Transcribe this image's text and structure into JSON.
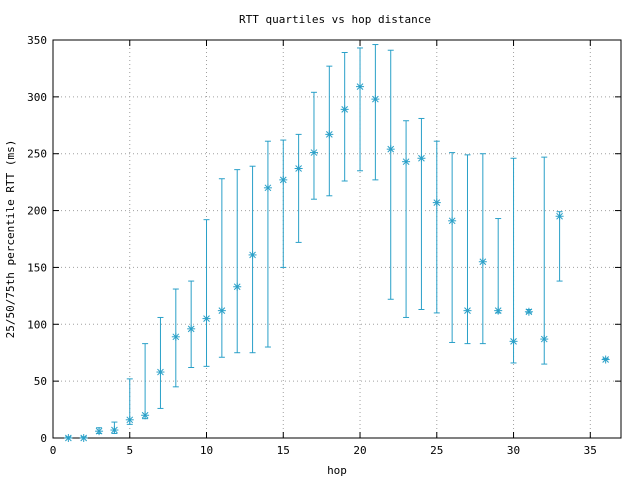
{
  "chart_data": {
    "type": "scatter",
    "title": "RTT quartiles vs hop distance",
    "xlabel": "hop",
    "ylabel": "25/50/75th percentile RTT (ms)",
    "xlim": [
      0,
      37
    ],
    "ylim": [
      0,
      350
    ],
    "xticks": [
      0,
      5,
      10,
      15,
      20,
      25,
      30,
      35
    ],
    "yticks": [
      0,
      50,
      100,
      150,
      200,
      250,
      300,
      350
    ],
    "grid": true,
    "color": "#2aa0c8",
    "points": [
      {
        "x": 1,
        "p25": 0,
        "median": 0,
        "p75": 1
      },
      {
        "x": 2,
        "p25": 0,
        "median": 0,
        "p75": 1
      },
      {
        "x": 3,
        "p25": 4,
        "median": 6,
        "p75": 9
      },
      {
        "x": 4,
        "p25": 4,
        "median": 7,
        "p75": 14
      },
      {
        "x": 5,
        "p25": 12,
        "median": 16,
        "p75": 52
      },
      {
        "x": 6,
        "p25": 17,
        "median": 20,
        "p75": 83
      },
      {
        "x": 7,
        "p25": 26,
        "median": 58,
        "p75": 106
      },
      {
        "x": 8,
        "p25": 45,
        "median": 89,
        "p75": 131
      },
      {
        "x": 9,
        "p25": 62,
        "median": 96,
        "p75": 138
      },
      {
        "x": 10,
        "p25": 63,
        "median": 105,
        "p75": 192
      },
      {
        "x": 11,
        "p25": 71,
        "median": 112,
        "p75": 228
      },
      {
        "x": 12,
        "p25": 75,
        "median": 133,
        "p75": 236
      },
      {
        "x": 13,
        "p25": 75,
        "median": 161,
        "p75": 239
      },
      {
        "x": 14,
        "p25": 80,
        "median": 220,
        "p75": 261
      },
      {
        "x": 15,
        "p25": 150,
        "median": 227,
        "p75": 262
      },
      {
        "x": 16,
        "p25": 172,
        "median": 237,
        "p75": 267
      },
      {
        "x": 17,
        "p25": 210,
        "median": 251,
        "p75": 304
      },
      {
        "x": 18,
        "p25": 213,
        "median": 267,
        "p75": 327
      },
      {
        "x": 19,
        "p25": 226,
        "median": 289,
        "p75": 339
      },
      {
        "x": 20,
        "p25": 235,
        "median": 309,
        "p75": 343
      },
      {
        "x": 21,
        "p25": 227,
        "median": 298,
        "p75": 346
      },
      {
        "x": 22,
        "p25": 122,
        "median": 254,
        "p75": 341
      },
      {
        "x": 23,
        "p25": 106,
        "median": 243,
        "p75": 279
      },
      {
        "x": 24,
        "p25": 113,
        "median": 246,
        "p75": 281
      },
      {
        "x": 25,
        "p25": 110,
        "median": 207,
        "p75": 261
      },
      {
        "x": 26,
        "p25": 84,
        "median": 191,
        "p75": 251
      },
      {
        "x": 27,
        "p25": 83,
        "median": 112,
        "p75": 249
      },
      {
        "x": 28,
        "p25": 83,
        "median": 155,
        "p75": 250
      },
      {
        "x": 29,
        "p25": 110,
        "median": 112,
        "p75": 193
      },
      {
        "x": 30,
        "p25": 66,
        "median": 85,
        "p75": 246
      },
      {
        "x": 31,
        "p25": 110,
        "median": 111,
        "p75": 113
      },
      {
        "x": 32,
        "p25": 65,
        "median": 87,
        "p75": 247
      },
      {
        "x": 33,
        "p25": 138,
        "median": 195,
        "p75": 199
      },
      {
        "x": 36,
        "p25": 69,
        "median": 69,
        "p75": 70
      }
    ]
  }
}
